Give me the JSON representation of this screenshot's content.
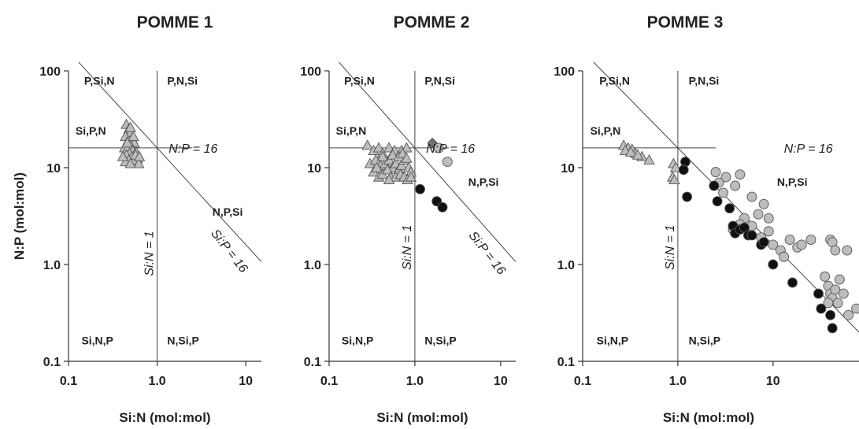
{
  "chart_data": [
    {
      "type": "scatter",
      "title": "POMME 1",
      "xscale": "log",
      "yscale": "log",
      "xlim": [
        0.1,
        15
      ],
      "ylim": [
        0.1,
        100
      ],
      "xlabel": "Si:N (mol:mol)",
      "ylabel": "N:P (mol:mol)",
      "xticks": [
        "0.1",
        "1.0",
        "10"
      ],
      "yticks": [
        "0.1",
        "1.0",
        "10",
        "100"
      ],
      "regions": [
        "P,Si,N",
        "P,N,Si",
        "Si,P,N",
        "N,P,Si",
        "Si,N,P",
        "N,Si,P"
      ],
      "lines": {
        "np": "N:P = 16",
        "sin": "Si:N = 1",
        "sip": "Si:P = 16"
      },
      "series": [
        {
          "marker": "triangle",
          "color": "#bdbdbd",
          "points": [
            [
              0.45,
              28
            ],
            [
              0.48,
              25
            ],
            [
              0.5,
              23
            ],
            [
              0.44,
              21
            ],
            [
              0.52,
              20
            ],
            [
              0.47,
              19
            ],
            [
              0.55,
              18
            ],
            [
              0.5,
              17
            ],
            [
              0.43,
              16
            ],
            [
              0.46,
              15.5
            ],
            [
              0.53,
              15
            ],
            [
              0.58,
              14.5
            ],
            [
              0.49,
              14
            ],
            [
              0.45,
              13.5
            ],
            [
              0.52,
              13
            ],
            [
              0.6,
              12.5
            ],
            [
              0.48,
              12
            ],
            [
              0.55,
              12
            ],
            [
              0.44,
              11.5
            ],
            [
              0.62,
              11
            ],
            [
              0.5,
              11
            ],
            [
              0.57,
              13.5
            ],
            [
              0.63,
              13
            ],
            [
              0.41,
              13
            ],
            [
              0.5,
              26
            ],
            [
              0.54,
              21
            ],
            [
              0.46,
              18
            ]
          ]
        }
      ]
    },
    {
      "type": "scatter",
      "title": "POMME 2",
      "xscale": "log",
      "yscale": "log",
      "xlim": [
        0.1,
        15
      ],
      "ylim": [
        0.1,
        100
      ],
      "xlabel": "Si:N (mol:mol)",
      "ylabel": "",
      "xticks": [
        "0.1",
        "1.0",
        "10"
      ],
      "yticks": [
        "0.1",
        "1.0",
        "10",
        "100"
      ],
      "regions": [
        "P,Si,N",
        "P,N,Si",
        "Si,P,N",
        "N,P,Si",
        "Si,N,P",
        "N,Si,P"
      ],
      "lines": {
        "np": "N:P = 16",
        "sin": "Si:N = 1",
        "sip": "Si:P = 16"
      },
      "series": [
        {
          "marker": "triangle",
          "color": "#bdbdbd",
          "points": [
            [
              0.28,
              17
            ],
            [
              0.33,
              15
            ],
            [
              0.38,
              16
            ],
            [
              0.42,
              14
            ],
            [
              0.5,
              16
            ],
            [
              0.58,
              15
            ],
            [
              0.7,
              15
            ],
            [
              0.8,
              16
            ],
            [
              0.3,
              11
            ],
            [
              0.35,
              12
            ],
            [
              0.4,
              10.5
            ],
            [
              0.45,
              11
            ],
            [
              0.5,
              12
            ],
            [
              0.55,
              10
            ],
            [
              0.6,
              11
            ],
            [
              0.65,
              9.5
            ],
            [
              0.7,
              10.5
            ],
            [
              0.75,
              12
            ],
            [
              0.85,
              10
            ],
            [
              0.9,
              9
            ],
            [
              0.33,
              9
            ],
            [
              0.38,
              8
            ],
            [
              0.42,
              8.5
            ],
            [
              0.48,
              9.5
            ],
            [
              0.52,
              8
            ],
            [
              0.6,
              8
            ],
            [
              0.68,
              8.5
            ],
            [
              0.75,
              8
            ],
            [
              0.82,
              7.5
            ],
            [
              0.9,
              8
            ],
            [
              0.42,
              13
            ],
            [
              0.55,
              13.5
            ],
            [
              0.65,
              13
            ],
            [
              0.72,
              14
            ],
            [
              0.5,
              7.5
            ],
            [
              0.36,
              10
            ],
            [
              0.8,
              12.5
            ]
          ]
        },
        {
          "marker": "circle",
          "color": "#bdbdbd",
          "points": [
            [
              1.9,
              16
            ],
            [
              2.4,
              11.5
            ]
          ]
        },
        {
          "marker": "diamond",
          "color": "#707070",
          "points": [
            [
              1.6,
              18
            ]
          ]
        },
        {
          "marker": "circle",
          "color": "#111111",
          "points": [
            [
              1.15,
              6
            ],
            [
              1.8,
              4.5
            ],
            [
              2.1,
              3.9
            ]
          ]
        }
      ]
    },
    {
      "type": "scatter",
      "title": "POMME 3",
      "xscale": "log",
      "yscale": "log",
      "xlim": [
        0.1,
        80
      ],
      "ylim": [
        0.1,
        100
      ],
      "xlabel": "Si:N (mol:mol)",
      "ylabel": "",
      "xticks": [
        "0.1",
        "1.0",
        "10"
      ],
      "yticks": [
        "0.1",
        "1.0",
        "10",
        "100"
      ],
      "regions": [
        "P,Si,N",
        "P,N,Si",
        "Si,P,N",
        "N,P,Si",
        "Si,N,P",
        "N,Si,P"
      ],
      "lines": {
        "np": "N:P = 16",
        "sin": "Si:N = 1",
        "sip": ""
      },
      "series": [
        {
          "marker": "triangle",
          "color": "#bdbdbd",
          "points": [
            [
              0.27,
              17
            ],
            [
              0.3,
              16
            ],
            [
              0.33,
              15.5
            ],
            [
              0.36,
              14
            ],
            [
              0.42,
              13
            ],
            [
              0.28,
              15
            ],
            [
              0.32,
              14.5
            ],
            [
              0.5,
              12
            ],
            [
              0.9,
              11
            ],
            [
              0.95,
              10
            ],
            [
              0.88,
              8
            ],
            [
              0.92,
              7.5
            ],
            [
              0.38,
              13.5
            ]
          ]
        },
        {
          "marker": "circle",
          "color": "#bdbdbd",
          "points": [
            [
              2.5,
              9
            ],
            [
              3.2,
              8
            ],
            [
              4.5,
              8.5
            ],
            [
              2.7,
              7
            ],
            [
              3.0,
              5.5
            ],
            [
              4.0,
              6.5
            ],
            [
              6.0,
              5
            ],
            [
              8.0,
              4.2
            ],
            [
              9.0,
              3
            ],
            [
              6,
              2.5
            ],
            [
              7,
              3.3
            ],
            [
              5,
              3
            ],
            [
              9,
              2.2
            ],
            [
              10,
              1.6
            ],
            [
              12,
              1.4
            ],
            [
              15,
              1.8
            ],
            [
              18,
              1.5
            ],
            [
              20,
              1.6
            ],
            [
              13,
              1.2
            ],
            [
              25,
              1.8
            ],
            [
              40,
              1.8
            ],
            [
              42,
              1.7
            ],
            [
              45,
              1.4
            ],
            [
              60,
              1.4
            ],
            [
              35,
              0.75
            ],
            [
              38,
              0.6
            ],
            [
              40,
              0.5
            ],
            [
              42,
              0.45
            ],
            [
              45,
              0.55
            ],
            [
              48,
              0.4
            ],
            [
              50,
              0.7
            ],
            [
              38,
              0.4
            ],
            [
              55,
              0.5
            ],
            [
              62,
              0.3
            ],
            [
              75,
              0.35
            ],
            [
              3.8,
              2.3
            ],
            [
              4.5,
              2.6
            ],
            [
              7.5,
              1.9
            ]
          ]
        },
        {
          "marker": "circle",
          "color": "#111111",
          "points": [
            [
              1.2,
              11.5
            ],
            [
              1.15,
              9.5
            ],
            [
              1.25,
              5
            ],
            [
              2.4,
              6.5
            ],
            [
              2.6,
              4.5
            ],
            [
              3.5,
              3.8
            ],
            [
              3.8,
              2.5
            ],
            [
              4,
              2.1
            ],
            [
              4.5,
              2.3
            ],
            [
              5,
              2.4
            ],
            [
              5.5,
              2.0
            ],
            [
              6,
              2.0
            ],
            [
              7.5,
              1.6
            ],
            [
              8,
              1.7
            ],
            [
              10,
              1.0
            ],
            [
              16,
              0.65
            ],
            [
              30,
              0.5
            ],
            [
              32,
              0.35
            ],
            [
              40,
              0.3
            ],
            [
              42,
              0.22
            ]
          ]
        }
      ]
    }
  ]
}
